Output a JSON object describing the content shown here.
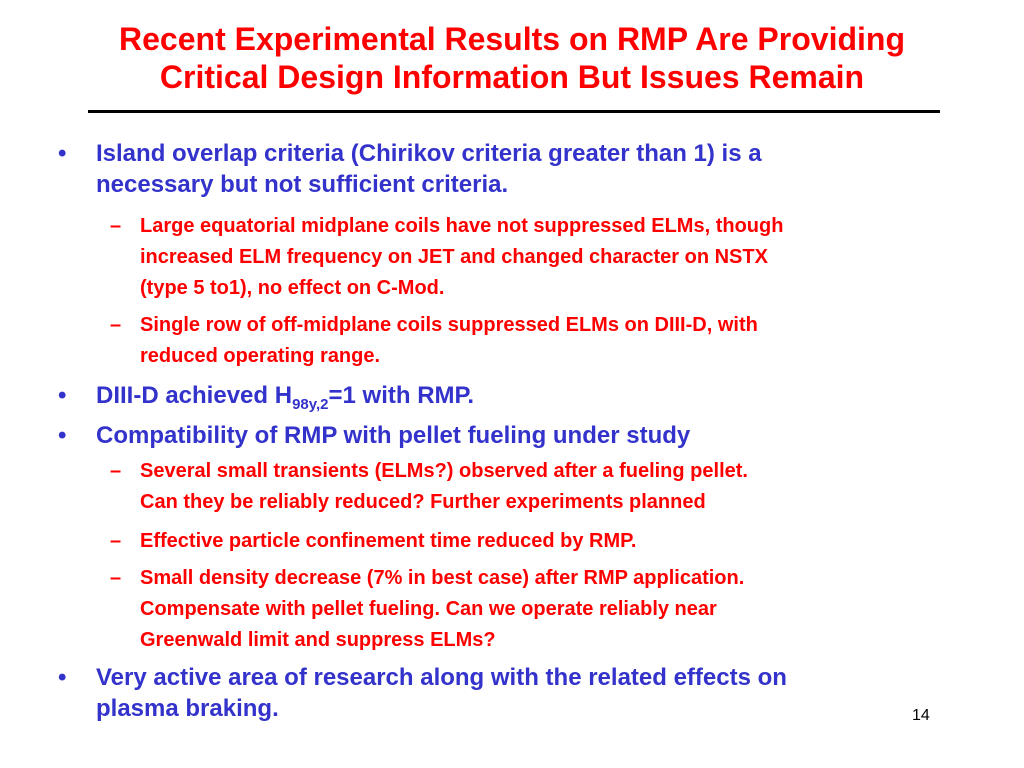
{
  "slide": {
    "title_line1": "Recent Experimental Results on RMP Are Providing",
    "title_line2": "Critical Design Information But Issues Remain",
    "bullet_marker": "•",
    "dash_marker": "–",
    "page_number": "14",
    "colors": {
      "title": "#ff0000",
      "bullet_text": "#3333cc",
      "sub_text": "#ff0000",
      "rule": "#000000"
    },
    "bullets": [
      {
        "line1": "Island overlap criteria (Chirikov criteria greater than 1) is a",
        "line2": "necessary but not sufficient criteria.",
        "subs": [
          {
            "line1": "Large equatorial midplane coils have not suppressed ELMs, though",
            "line2": "increased ELM frequency on JET and changed character on NSTX",
            "line3": "(type 5 to1), no effect on C-Mod."
          },
          {
            "line1": "Single row of off-midplane coils suppressed ELMs on DIII-D, with",
            "line2": "reduced operating range."
          }
        ]
      },
      {
        "text_before": "DIII-D achieved H",
        "subscript": "98y,2",
        "text_after": "=1 with RMP."
      },
      {
        "line1": "Compatibility of RMP with pellet fueling under study",
        "subs": [
          {
            "line1": "Several small transients (ELMs?) observed after a fueling pellet.",
            "line2": "Can they be reliably reduced?  Further experiments planned"
          },
          {
            "line1": "Effective particle confinement time reduced by RMP."
          },
          {
            "line1": "Small density decrease (7% in best case) after RMP application.",
            "line2": "Compensate with pellet fueling. Can we operate reliably near",
            "line3": "Greenwald limit and suppress ELMs?"
          }
        ]
      },
      {
        "line1": "Very active area of research along with the related effects on",
        "line2": "plasma braking."
      }
    ]
  }
}
